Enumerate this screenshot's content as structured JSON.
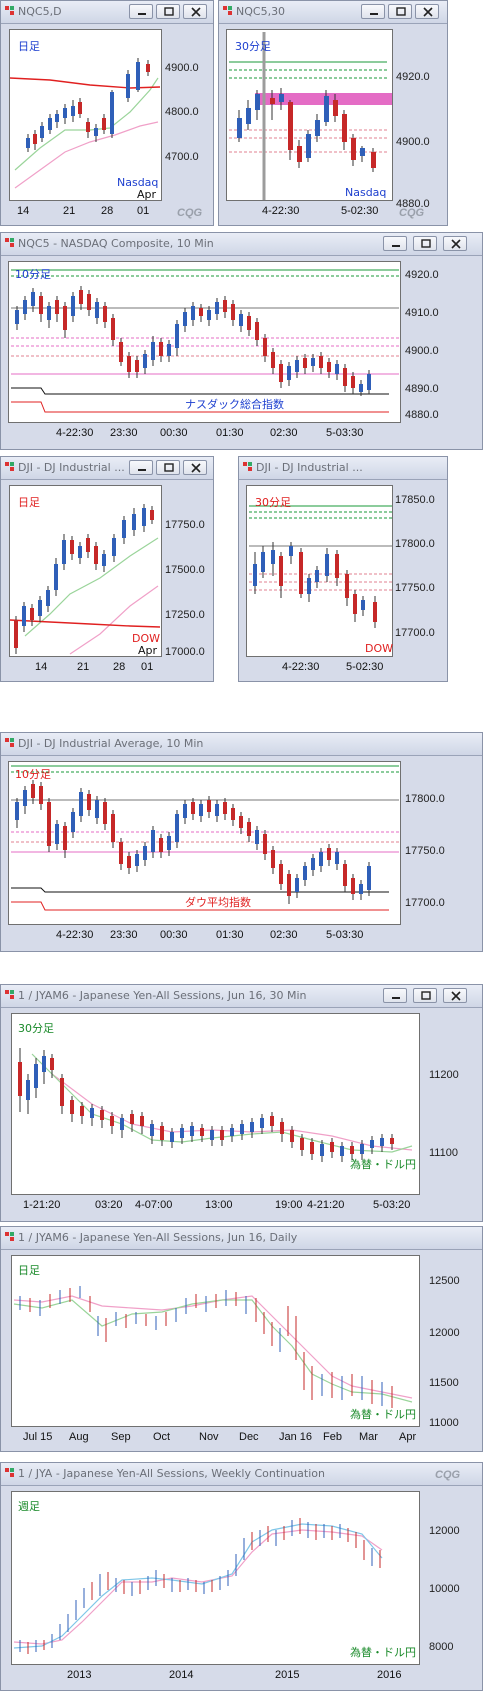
{
  "colors": {
    "up": "#2f5fb8",
    "down": "#c62828",
    "titlebar": "#d6dbe9",
    "green": "#1a9a3a",
    "pink": "#e46cc5",
    "red": "#e02020"
  },
  "icons": {
    "window": "cqg-chart-icon",
    "min": "minimize-icon",
    "restore": "restore-icon",
    "close": "close-icon"
  },
  "windows": [
    {
      "title": "NQC5,D",
      "period": "日足",
      "period_color": "#1d3fcf",
      "footer": "Nasdaq",
      "footer_color": "#1d3fcf",
      "yticks": [
        "4900.0",
        "4800.0",
        "4700.0"
      ],
      "xticks": [
        "14",
        "21",
        "28",
        "01"
      ],
      "xsub": "Apr",
      "brand": "CQG"
    },
    {
      "title": "NQC5,30",
      "period": "30分足",
      "period_color": "#1d3fcf",
      "footer": "Nasdaq",
      "footer_color": "#1d3fcf",
      "yticks": [
        "4920.0",
        "4900.0",
        "4880.0"
      ],
      "xticks": [
        "4-22:30",
        "5-02:30"
      ],
      "brand": "CQG"
    },
    {
      "title": "NQC5 - NASDAQ Composite, 10 Min",
      "period": "10分足",
      "period_color": "#1d3fcf",
      "footer": "ナスダック総合指数",
      "footer_color": "#1d3fcf",
      "yticks": [
        "4920.0",
        "4910.0",
        "4900.0",
        "4890.0",
        "4880.0"
      ],
      "xticks": [
        "4-22:30",
        "23:30",
        "00:30",
        "01:30",
        "02:30",
        "5-03:30"
      ]
    },
    {
      "title": "DJI - DJ Industrial ...",
      "period": "日足",
      "period_color": "#e02020",
      "footer": "DOW",
      "footer_color": "#e02020",
      "yticks": [
        "17750.0",
        "17500.0",
        "17250.0",
        "17000.0"
      ],
      "xticks": [
        "14",
        "21",
        "28",
        "01"
      ],
      "xsub": "Apr"
    },
    {
      "title": "DJI - DJ Industrial ...",
      "period": "30分足",
      "period_color": "#e02020",
      "footer": "DOW",
      "footer_color": "#e02020",
      "yticks": [
        "17850.0",
        "17800.0",
        "17750.0",
        "17700.0"
      ],
      "xticks": [
        "4-22:30",
        "5-02:30"
      ]
    },
    {
      "title": "DJI - DJ Industrial Average, 10 Min",
      "period": "10分足",
      "period_color": "#e02020",
      "footer": "ダウ平均指数",
      "footer_color": "#e02020",
      "yticks": [
        "17800.0",
        "17750.0",
        "17700.0"
      ],
      "xticks": [
        "4-22:30",
        "23:30",
        "00:30",
        "01:30",
        "02:30",
        "5-03:30"
      ]
    },
    {
      "title": "1 / JYAM6 - Japanese Yen-All Sessions, Jun 16, 30 Min",
      "period": "30分足",
      "period_color": "#1a8a2a",
      "footer": "為替・ドル円",
      "footer_color": "#1a8a2a",
      "yticks": [
        "11200",
        "11100"
      ],
      "xticks": [
        "1-21:20",
        "03:20",
        "4-07:00",
        "13:00",
        "19:00",
        "4-21:20",
        "5-03:20"
      ]
    },
    {
      "title": "1 / JYAM6 - Japanese Yen-All Sessions, Jun 16, Daily",
      "period": "日足",
      "period_color": "#1a8a2a",
      "footer": "為替・ドル円",
      "footer_color": "#1a8a2a",
      "yticks": [
        "12500",
        "12000",
        "11500",
        "11000"
      ],
      "xticks": [
        "Jul 15",
        "Aug",
        "Sep",
        "Oct",
        "Nov",
        "Dec",
        "Jan 16",
        "Feb",
        "Mar",
        "Apr"
      ]
    },
    {
      "title": "1 / JYA - Japanese Yen-All Sessions, Weekly Continuation",
      "period": "週足",
      "period_color": "#1a8a2a",
      "footer": "為替・ドル円",
      "footer_color": "#1a8a2a",
      "yticks": [
        "12000",
        "10000",
        "8000"
      ],
      "xticks": [
        "2013",
        "2014",
        "2015",
        "2016"
      ],
      "brand": "CQG"
    }
  ]
}
